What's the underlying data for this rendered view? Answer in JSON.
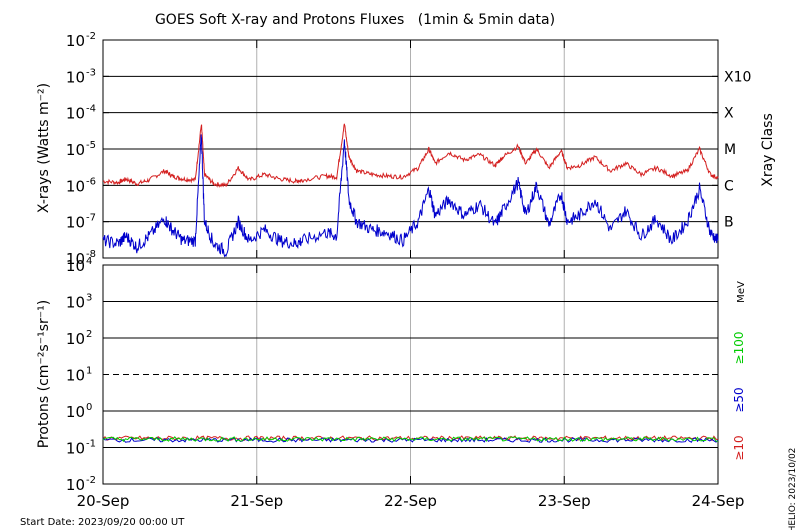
{
  "chart_data": [
    {
      "type": "line",
      "title": "GOES Soft X-ray and Protons Fluxes   (1min & 5min data)",
      "ylabel": "X-rays (Watts m⁻²)",
      "y2label": "Xray Class",
      "yscale": "log",
      "ylim": [
        1e-08,
        0.01
      ],
      "xlim": [
        0,
        4
      ],
      "xticks": [
        "20-Sep",
        "21-Sep",
        "22-Sep",
        "23-Sep",
        "24-Sep"
      ],
      "ytick_labels": [
        {
          "exp": -8,
          "label": "10",
          "sup": "-8"
        },
        {
          "exp": -7,
          "label": "10",
          "sup": "-7"
        },
        {
          "exp": -6,
          "label": "10",
          "sup": "-6"
        },
        {
          "exp": -5,
          "label": "10",
          "sup": "-5"
        },
        {
          "exp": -4,
          "label": "10",
          "sup": "-4"
        },
        {
          "exp": -3,
          "label": "10",
          "sup": "-3"
        },
        {
          "exp": -2,
          "label": "10",
          "sup": "-2"
        }
      ],
      "class_labels": [
        {
          "label": "X10",
          "exp": -3
        },
        {
          "label": "X",
          "exp": -4
        },
        {
          "label": "M",
          "exp": -5
        },
        {
          "label": "C",
          "exp": -6
        },
        {
          "label": "B",
          "exp": -7
        }
      ],
      "series": [
        {
          "color": "#d42020",
          "points": [
            [
              0.0,
              1.3e-06
            ],
            [
              0.1,
              1.2e-06
            ],
            [
              0.15,
              1.5e-06
            ],
            [
              0.22,
              1.1e-06
            ],
            [
              0.3,
              1.4e-06
            ],
            [
              0.4,
              2.5e-06
            ],
            [
              0.45,
              1.8e-06
            ],
            [
              0.52,
              1.5e-06
            ],
            [
              0.6,
              1.4e-06
            ],
            [
              0.64,
              5e-05
            ],
            [
              0.66,
              2e-06
            ],
            [
              0.72,
              1.1e-06
            ],
            [
              0.8,
              1e-06
            ],
            [
              0.88,
              3e-06
            ],
            [
              0.95,
              1.4e-06
            ],
            [
              1.05,
              2e-06
            ],
            [
              1.15,
              1.5e-06
            ],
            [
              1.25,
              1.3e-06
            ],
            [
              1.3,
              1.4e-06
            ],
            [
              1.45,
              1.8e-06
            ],
            [
              1.52,
              1.7e-06
            ],
            [
              1.57,
              5e-05
            ],
            [
              1.6,
              6e-06
            ],
            [
              1.65,
              2.5e-06
            ],
            [
              1.75,
              2e-06
            ],
            [
              1.85,
              1.8e-06
            ],
            [
              1.95,
              1.7e-06
            ],
            [
              2.05,
              3e-06
            ],
            [
              2.12,
              1e-05
            ],
            [
              2.16,
              4e-06
            ],
            [
              2.25,
              8e-06
            ],
            [
              2.35,
              5e-06
            ],
            [
              2.45,
              7e-06
            ],
            [
              2.55,
              3.5e-06
            ],
            [
              2.6,
              6e-06
            ],
            [
              2.7,
              1.2e-05
            ],
            [
              2.75,
              4e-06
            ],
            [
              2.82,
              1e-05
            ],
            [
              2.9,
              3e-06
            ],
            [
              2.98,
              9e-06
            ],
            [
              3.02,
              3e-06
            ],
            [
              3.1,
              3.5e-06
            ],
            [
              3.2,
              6e-06
            ],
            [
              3.3,
              2.5e-06
            ],
            [
              3.4,
              4e-06
            ],
            [
              3.5,
              2e-06
            ],
            [
              3.6,
              3e-06
            ],
            [
              3.7,
              1.8e-06
            ],
            [
              3.8,
              2.5e-06
            ],
            [
              3.88,
              1e-05
            ],
            [
              3.95,
              2e-06
            ],
            [
              4.0,
              1.6e-06
            ]
          ]
        },
        {
          "color": "#0000cc",
          "points": [
            [
              0.0,
              3e-08
            ],
            [
              0.1,
              2.5e-08
            ],
            [
              0.15,
              4e-08
            ],
            [
              0.22,
              2e-08
            ],
            [
              0.3,
              4e-08
            ],
            [
              0.4,
              1.2e-07
            ],
            [
              0.45,
              6e-08
            ],
            [
              0.52,
              3e-08
            ],
            [
              0.6,
              3e-08
            ],
            [
              0.64,
              2.5e-05
            ],
            [
              0.66,
              1e-07
            ],
            [
              0.72,
              2.5e-08
            ],
            [
              0.8,
              1.5e-08
            ],
            [
              0.88,
              1e-07
            ],
            [
              0.95,
              3e-08
            ],
            [
              1.05,
              6e-08
            ],
            [
              1.15,
              3e-08
            ],
            [
              1.25,
              2.5e-08
            ],
            [
              1.3,
              3e-08
            ],
            [
              1.45,
              5e-08
            ],
            [
              1.52,
              4e-08
            ],
            [
              1.57,
              1.8e-05
            ],
            [
              1.6,
              4e-07
            ],
            [
              1.65,
              1e-07
            ],
            [
              1.75,
              6e-08
            ],
            [
              1.85,
              5e-08
            ],
            [
              1.95,
              3e-08
            ],
            [
              2.05,
              1e-07
            ],
            [
              2.12,
              8e-07
            ],
            [
              2.16,
              1.5e-07
            ],
            [
              2.25,
              4e-07
            ],
            [
              2.35,
              1.5e-07
            ],
            [
              2.45,
              3e-07
            ],
            [
              2.55,
              8e-08
            ],
            [
              2.6,
              2e-07
            ],
            [
              2.7,
              1.2e-06
            ],
            [
              2.75,
              1.5e-07
            ],
            [
              2.82,
              1e-06
            ],
            [
              2.9,
              8e-08
            ],
            [
              2.98,
              6e-07
            ],
            [
              3.02,
              1e-07
            ],
            [
              3.1,
              1.5e-07
            ],
            [
              3.2,
              4e-07
            ],
            [
              3.3,
              6e-08
            ],
            [
              3.4,
              2e-07
            ],
            [
              3.5,
              4e-08
            ],
            [
              3.6,
              1.2e-07
            ],
            [
              3.7,
              3e-08
            ],
            [
              3.8,
              1e-07
            ],
            [
              3.88,
              8e-07
            ],
            [
              3.95,
              5e-08
            ],
            [
              4.0,
              3e-08
            ]
          ]
        }
      ]
    },
    {
      "type": "line",
      "ylabel": "Protons (cm⁻²s⁻¹sr⁻¹)",
      "yscale": "log",
      "ylim": [
        0.01,
        10000
      ],
      "xlim": [
        0,
        4
      ],
      "xticks": [
        "20-Sep",
        "21-Sep",
        "22-Sep",
        "23-Sep",
        "24-Sep"
      ],
      "ytick_labels": [
        {
          "exp": -2,
          "label": "10",
          "sup": "-2"
        },
        {
          "exp": -1,
          "label": "10",
          "sup": "-1"
        },
        {
          "exp": 0,
          "label": "10",
          "sup": "0"
        },
        {
          "exp": 1,
          "label": "10",
          "sup": "1"
        },
        {
          "exp": 2,
          "label": "10",
          "sup": "2"
        },
        {
          "exp": 3,
          "label": "10",
          "sup": "3"
        },
        {
          "exp": 4,
          "label": "10",
          "sup": "4"
        }
      ],
      "threshold": 10,
      "unit": "MeV",
      "legend": [
        {
          "label": "≥100",
          "color": "#00cc00"
        },
        {
          "label": "≥50",
          "color": "#0000cc"
        },
        {
          "label": "≥10",
          "color": "#d42020"
        }
      ],
      "series": [
        {
          "color": "#d42020",
          "level": 0.18
        },
        {
          "color": "#0000cc",
          "level": 0.16
        },
        {
          "color": "#00cc00",
          "level": 0.17
        }
      ]
    }
  ],
  "footer": {
    "start_date": "Start Date: 2023/09/20 00:00 UT",
    "credit": "HELIO: 2023/10/02"
  },
  "colors": {
    "grid_major": "#000000",
    "grid_day": "#b0b0b0"
  }
}
